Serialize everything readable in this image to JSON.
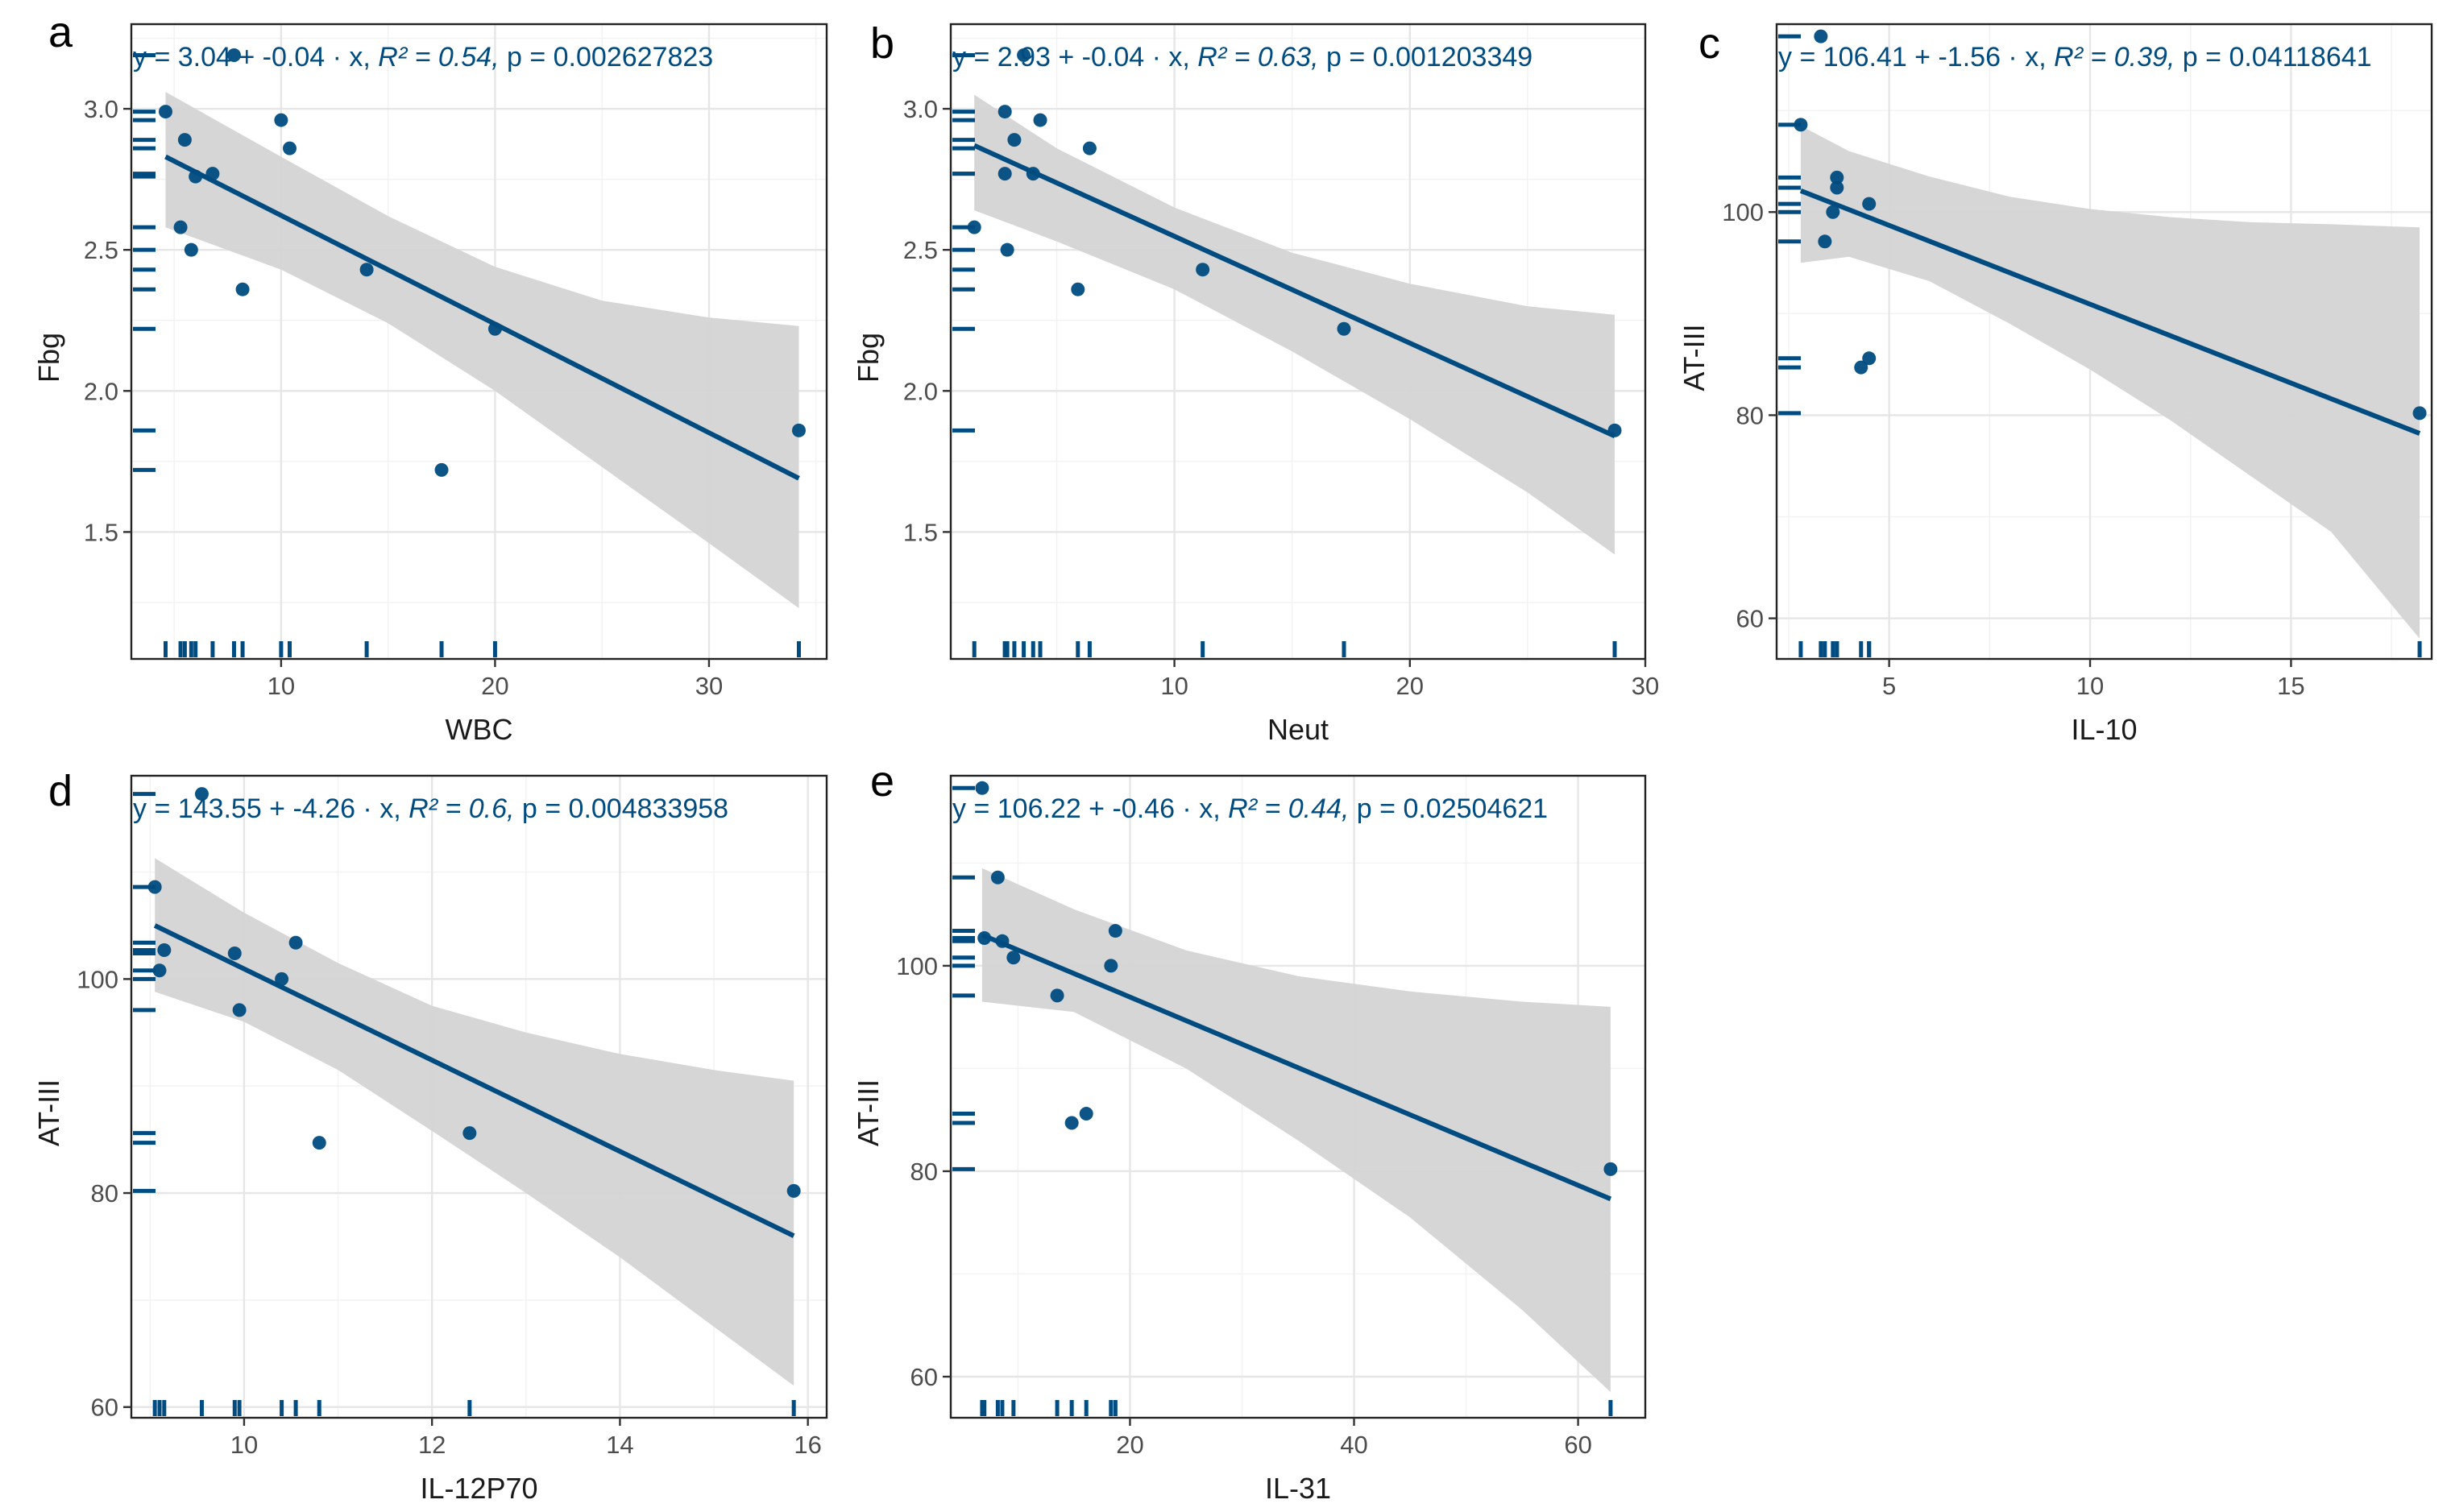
{
  "colors": {
    "accent": "#004C80",
    "band": "#D4D4D4",
    "frame": "#222222",
    "grid": "#E6E6E6"
  },
  "chart_data": [
    {
      "panel": "a",
      "type": "scatter",
      "xlabel": "WBC",
      "ylabel": "Fbg",
      "xlim": [
        3,
        35.5
      ],
      "ylim": [
        1.05,
        3.3
      ],
      "xticks": [
        10,
        20,
        30
      ],
      "yticks": [
        1.5,
        2.0,
        2.5,
        3.0
      ],
      "ytick_labels": [
        "1.5",
        "2.0",
        "2.5",
        "3.0"
      ],
      "points": [
        {
          "x": 4.6,
          "y": 2.99
        },
        {
          "x": 5.3,
          "y": 2.58
        },
        {
          "x": 5.5,
          "y": 2.89
        },
        {
          "x": 5.8,
          "y": 2.5
        },
        {
          "x": 6.0,
          "y": 2.76
        },
        {
          "x": 6.8,
          "y": 2.77
        },
        {
          "x": 7.8,
          "y": 3.19
        },
        {
          "x": 8.2,
          "y": 2.36
        },
        {
          "x": 10.0,
          "y": 2.96
        },
        {
          "x": 10.4,
          "y": 2.86
        },
        {
          "x": 14.0,
          "y": 2.43
        },
        {
          "x": 17.5,
          "y": 1.72
        },
        {
          "x": 20.0,
          "y": 2.22
        },
        {
          "x": 34.2,
          "y": 1.86
        }
      ],
      "fit": {
        "x": [
          4.6,
          34.2
        ],
        "y": [
          2.83,
          1.69
        ]
      },
      "band": {
        "x": [
          4.6,
          10,
          15,
          20,
          25,
          30,
          34.2
        ],
        "lower": [
          2.58,
          2.43,
          2.24,
          2.0,
          1.73,
          1.46,
          1.23
        ],
        "upper": [
          3.06,
          2.83,
          2.62,
          2.44,
          2.32,
          2.26,
          2.23
        ]
      },
      "equation": {
        "prefix": "y = 3.04 + -0.04 · x,  ",
        "r2": "R² = 0.54,  ",
        "p": "p = 0.002627823"
      }
    },
    {
      "panel": "b",
      "type": "scatter",
      "xlabel": "Neut",
      "ylabel": "Fbg",
      "xlim": [
        0.5,
        30
      ],
      "ylim": [
        1.05,
        3.3
      ],
      "xticks": [
        10,
        20,
        30
      ],
      "yticks": [
        1.5,
        2.0,
        2.5,
        3.0
      ],
      "ytick_labels": [
        "1.5",
        "2.0",
        "2.5",
        "3.0"
      ],
      "points": [
        {
          "x": 1.5,
          "y": 2.58
        },
        {
          "x": 2.8,
          "y": 2.99
        },
        {
          "x": 2.8,
          "y": 2.77
        },
        {
          "x": 2.9,
          "y": 2.5
        },
        {
          "x": 3.2,
          "y": 2.89
        },
        {
          "x": 3.6,
          "y": 3.19
        },
        {
          "x": 4.0,
          "y": 2.77
        },
        {
          "x": 4.3,
          "y": 2.96
        },
        {
          "x": 5.9,
          "y": 2.36
        },
        {
          "x": 6.4,
          "y": 2.86
        },
        {
          "x": 11.2,
          "y": 2.43
        },
        {
          "x": 17.2,
          "y": 2.22
        },
        {
          "x": 28.7,
          "y": 1.86
        }
      ],
      "fit": {
        "x": [
          1.5,
          28.7
        ],
        "y": [
          2.87,
          1.84
        ]
      },
      "band": {
        "x": [
          1.5,
          5,
          10,
          15,
          20,
          25,
          28.7
        ],
        "lower": [
          2.64,
          2.53,
          2.36,
          2.14,
          1.9,
          1.64,
          1.42
        ],
        "upper": [
          3.05,
          2.86,
          2.65,
          2.49,
          2.38,
          2.3,
          2.27
        ]
      },
      "equation": {
        "prefix": "y = 2.93 + -0.04 · x,  ",
        "r2": "R² = 0.63,  ",
        "p": "p = 0.001203349"
      }
    },
    {
      "panel": "c",
      "type": "scatter",
      "xlabel": "IL-10",
      "ylabel": "AT-III",
      "xlim": [
        2.2,
        18.5
      ],
      "ylim": [
        56,
        118.5
      ],
      "xticks": [
        5,
        10,
        15
      ],
      "yticks": [
        60,
        80,
        100
      ],
      "ytick_labels": [
        "60",
        "80",
        "100"
      ],
      "points": [
        {
          "x": 2.8,
          "y": 108.6
        },
        {
          "x": 3.3,
          "y": 117.3
        },
        {
          "x": 3.4,
          "y": 97.1
        },
        {
          "x": 3.6,
          "y": 100.0
        },
        {
          "x": 3.7,
          "y": 103.4
        },
        {
          "x": 3.7,
          "y": 102.4
        },
        {
          "x": 4.3,
          "y": 84.7
        },
        {
          "x": 4.5,
          "y": 85.6
        },
        {
          "x": 4.5,
          "y": 100.8
        },
        {
          "x": 18.2,
          "y": 80.2
        }
      ],
      "fit": {
        "x": [
          2.8,
          18.2
        ],
        "y": [
          102.1,
          78.2
        ]
      },
      "band": {
        "x": [
          2.8,
          4,
          6,
          8,
          10,
          12,
          14,
          16,
          18.2
        ],
        "lower": [
          95.0,
          95.6,
          93.2,
          89.0,
          84.5,
          79.5,
          74.0,
          68.5,
          58.0
        ],
        "upper": [
          108.5,
          106.0,
          103.5,
          101.5,
          100.3,
          99.5,
          99.0,
          98.8,
          98.5
        ]
      },
      "equation": {
        "prefix": "y = 106.41 + -1.56 · x,  ",
        "r2": "R² = 0.39,  ",
        "p": "p = 0.04118641"
      }
    },
    {
      "panel": "d",
      "type": "scatter",
      "xlabel": "IL-12P70",
      "ylabel": "AT-III",
      "xlim": [
        8.8,
        16.2
      ],
      "ylim": [
        59,
        119
      ],
      "xticks": [
        10,
        12,
        14,
        16
      ],
      "yticks": [
        60,
        80,
        100
      ],
      "ytick_labels": [
        "60",
        "80",
        "100"
      ],
      "points": [
        {
          "x": 9.05,
          "y": 108.6
        },
        {
          "x": 9.1,
          "y": 100.8
        },
        {
          "x": 9.15,
          "y": 102.7
        },
        {
          "x": 9.55,
          "y": 117.3
        },
        {
          "x": 9.9,
          "y": 102.4
        },
        {
          "x": 9.95,
          "y": 97.1
        },
        {
          "x": 10.4,
          "y": 100.0
        },
        {
          "x": 10.55,
          "y": 103.4
        },
        {
          "x": 10.8,
          "y": 84.7
        },
        {
          "x": 12.4,
          "y": 85.6
        },
        {
          "x": 15.85,
          "y": 80.2
        }
      ],
      "fit": {
        "x": [
          9.05,
          15.85
        ],
        "y": [
          105.0,
          76.0
        ]
      },
      "band": {
        "x": [
          9.05,
          10,
          11,
          12,
          13,
          14,
          15,
          15.85
        ],
        "lower": [
          98.8,
          96.0,
          91.5,
          85.8,
          80.0,
          74.0,
          67.5,
          62.0
        ],
        "upper": [
          111.3,
          106.2,
          101.5,
          97.5,
          95.0,
          93.0,
          91.5,
          90.5
        ]
      },
      "equation": {
        "prefix": "y = 143.55 + -4.26 · x,  ",
        "r2": "R² = 0.6,  ",
        "p": "p = 0.004833958"
      }
    },
    {
      "panel": "e",
      "type": "scatter",
      "xlabel": "IL-31",
      "ylabel": "AT-III",
      "xlim": [
        4,
        66
      ],
      "ylim": [
        56,
        118.5
      ],
      "xticks": [
        20,
        40,
        60
      ],
      "yticks": [
        60,
        80,
        100
      ],
      "ytick_labels": [
        "60",
        "80",
        "100"
      ],
      "points": [
        {
          "x": 6.8,
          "y": 117.3
        },
        {
          "x": 7.0,
          "y": 102.7
        },
        {
          "x": 8.2,
          "y": 108.6
        },
        {
          "x": 8.6,
          "y": 102.4
        },
        {
          "x": 9.6,
          "y": 100.8
        },
        {
          "x": 13.5,
          "y": 97.1
        },
        {
          "x": 14.8,
          "y": 84.7
        },
        {
          "x": 16.1,
          "y": 85.6
        },
        {
          "x": 18.3,
          "y": 100.0
        },
        {
          "x": 18.7,
          "y": 103.4
        },
        {
          "x": 62.9,
          "y": 80.2
        }
      ],
      "fit": {
        "x": [
          6.8,
          62.9
        ],
        "y": [
          103.0,
          77.3
        ]
      },
      "band": {
        "x": [
          6.8,
          15,
          25,
          35,
          45,
          55,
          62.9
        ],
        "lower": [
          96.5,
          95.5,
          90.0,
          83.0,
          75.5,
          66.5,
          58.5
        ],
        "upper": [
          109.5,
          105.5,
          101.5,
          99.0,
          97.5,
          96.5,
          96.0
        ]
      },
      "equation": {
        "prefix": "y = 106.22 + -0.46 · x,  ",
        "r2": "R² = 0.44,  ",
        "p": "p = 0.02504621"
      }
    }
  ]
}
